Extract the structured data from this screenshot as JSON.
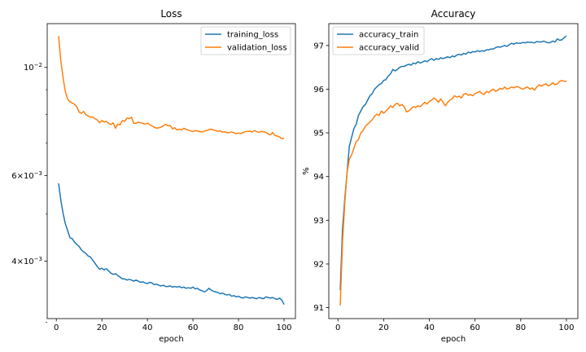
{
  "colors": {
    "train": "#1f77b4",
    "valid": "#ff7f0e"
  },
  "chart_data": [
    {
      "type": "line",
      "title": "Loss",
      "xlabel": "epoch",
      "ylabel": "",
      "yscale": "log",
      "xlim": [
        -4,
        105
      ],
      "ylim": [
        0.00305,
        0.0123
      ],
      "x_ticks": [
        0,
        20,
        40,
        60,
        80,
        100
      ],
      "x_tick_labels": [
        "0",
        "20",
        "40",
        "60",
        "80",
        "100"
      ],
      "y_ticks_major": [
        0.01,
        0.006,
        0.004
      ],
      "y_tick_labels": [
        "10^-2",
        "6×10^-3",
        "4×10^-3"
      ],
      "y_ticks_minor": [
        0.003,
        0.005,
        0.007,
        0.008,
        0.009
      ],
      "legend_position": "top-right",
      "series": [
        {
          "name": "training_loss",
          "color_key": "train",
          "x": [
            1,
            2,
            3,
            4,
            5,
            6,
            7,
            8,
            9,
            10,
            11,
            12,
            13,
            14,
            15,
            16,
            17,
            18,
            19,
            20,
            21,
            22,
            23,
            24,
            25,
            26,
            27,
            28,
            29,
            30,
            31,
            32,
            33,
            34,
            35,
            36,
            37,
            38,
            39,
            40,
            41,
            42,
            43,
            44,
            45,
            46,
            47,
            48,
            49,
            50,
            51,
            52,
            53,
            54,
            55,
            56,
            57,
            58,
            59,
            60,
            61,
            62,
            63,
            64,
            65,
            66,
            67,
            68,
            69,
            70,
            71,
            72,
            73,
            74,
            75,
            76,
            77,
            78,
            79,
            80,
            81,
            82,
            83,
            84,
            85,
            86,
            87,
            88,
            89,
            90,
            91,
            92,
            93,
            94,
            95,
            96,
            97,
            98,
            99,
            100
          ],
          "y": [
            0.00578,
            0.00533,
            0.00501,
            0.00477,
            0.00462,
            0.00447,
            0.00445,
            0.00438,
            0.00433,
            0.00429,
            0.00422,
            0.00418,
            0.00415,
            0.0041,
            0.00408,
            0.00402,
            0.00396,
            0.0039,
            0.00385,
            0.00387,
            0.00384,
            0.00386,
            0.00382,
            0.00378,
            0.00376,
            0.00377,
            0.00374,
            0.00371,
            0.00368,
            0.00368,
            0.00366,
            0.00367,
            0.00366,
            0.00364,
            0.00366,
            0.00364,
            0.00362,
            0.00363,
            0.00361,
            0.0036,
            0.00362,
            0.00361,
            0.00358,
            0.00359,
            0.00357,
            0.00356,
            0.00357,
            0.00355,
            0.00355,
            0.00356,
            0.00354,
            0.00355,
            0.00354,
            0.00355,
            0.00353,
            0.00354,
            0.00352,
            0.00353,
            0.00352,
            0.00354,
            0.00351,
            0.00352,
            0.00349,
            0.00348,
            0.00346,
            0.00348,
            0.00352,
            0.00349,
            0.00347,
            0.00346,
            0.00345,
            0.00343,
            0.00344,
            0.00342,
            0.00341,
            0.00342,
            0.00339,
            0.0034,
            0.00338,
            0.00339,
            0.00337,
            0.00336,
            0.00338,
            0.00337,
            0.00336,
            0.00337,
            0.00336,
            0.00335,
            0.00337,
            0.00336,
            0.00335,
            0.00338,
            0.00337,
            0.00336,
            0.00337,
            0.00335,
            0.00334,
            0.00336,
            0.00333,
            0.00326
          ]
        },
        {
          "name": "validation_loss",
          "color_key": "valid",
          "x": [
            1,
            2,
            3,
            4,
            5,
            6,
            7,
            8,
            9,
            10,
            11,
            12,
            13,
            14,
            15,
            16,
            17,
            18,
            19,
            20,
            21,
            22,
            23,
            24,
            25,
            26,
            27,
            28,
            29,
            30,
            31,
            32,
            33,
            34,
            35,
            36,
            37,
            38,
            39,
            40,
            41,
            42,
            43,
            44,
            45,
            46,
            47,
            48,
            49,
            50,
            51,
            52,
            53,
            54,
            55,
            56,
            57,
            58,
            59,
            60,
            61,
            62,
            63,
            64,
            65,
            66,
            67,
            68,
            69,
            70,
            71,
            72,
            73,
            74,
            75,
            76,
            77,
            78,
            79,
            80,
            81,
            82,
            83,
            84,
            85,
            86,
            87,
            88,
            89,
            90,
            91,
            92,
            93,
            94,
            95,
            96,
            97,
            98,
            99,
            100
          ],
          "y": [
            0.0116,
            0.0103,
            0.0095,
            0.0089,
            0.0086,
            0.0085,
            0.00845,
            0.0084,
            0.0083,
            0.0081,
            0.00805,
            0.00812,
            0.008,
            0.00795,
            0.0079,
            0.00791,
            0.00785,
            0.0078,
            0.0077,
            0.00778,
            0.00772,
            0.00775,
            0.00768,
            0.00763,
            0.0077,
            0.0075,
            0.00765,
            0.00762,
            0.00778,
            0.00775,
            0.00787,
            0.00785,
            0.0079,
            0.00768,
            0.00768,
            0.00772,
            0.0077,
            0.00768,
            0.00765,
            0.00768,
            0.00763,
            0.00758,
            0.00754,
            0.0075,
            0.00752,
            0.00754,
            0.00759,
            0.00764,
            0.00759,
            0.0076,
            0.00748,
            0.00752,
            0.00744,
            0.00747,
            0.00744,
            0.0075,
            0.00746,
            0.00743,
            0.00741,
            0.00738,
            0.00742,
            0.0074,
            0.00738,
            0.00737,
            0.0074,
            0.00742,
            0.00745,
            0.00747,
            0.00744,
            0.00742,
            0.00739,
            0.00741,
            0.00736,
            0.00738,
            0.00734,
            0.00735,
            0.00737,
            0.00734,
            0.00731,
            0.00733,
            0.00731,
            0.00735,
            0.00738,
            0.00739,
            0.0074,
            0.00737,
            0.00742,
            0.00738,
            0.00736,
            0.00739,
            0.00738,
            0.00735,
            0.0073,
            0.00727,
            0.00735,
            0.00725,
            0.00723,
            0.0072,
            0.00714,
            0.00716
          ]
        }
      ]
    },
    {
      "type": "line",
      "title": "Accuracy",
      "xlabel": "epoch",
      "ylabel": "%",
      "yscale": "linear",
      "xlim": [
        -4,
        105
      ],
      "ylim": [
        90.75,
        97.5
      ],
      "x_ticks": [
        0,
        20,
        40,
        60,
        80,
        100
      ],
      "x_tick_labels": [
        "0",
        "20",
        "40",
        "60",
        "80",
        "100"
      ],
      "y_ticks_major": [
        91,
        92,
        93,
        94,
        95,
        96,
        97
      ],
      "y_tick_labels": [
        "91",
        "92",
        "93",
        "94",
        "95",
        "96",
        "97"
      ],
      "legend_position": "top-left",
      "series": [
        {
          "name": "accuracy_train",
          "color_key": "train",
          "x": [
            1,
            2,
            3,
            4,
            5,
            6,
            7,
            8,
            9,
            10,
            11,
            12,
            13,
            14,
            15,
            16,
            17,
            18,
            19,
            20,
            21,
            22,
            23,
            24,
            25,
            26,
            27,
            28,
            29,
            30,
            31,
            32,
            33,
            34,
            35,
            36,
            37,
            38,
            39,
            40,
            41,
            42,
            43,
            44,
            45,
            46,
            47,
            48,
            49,
            50,
            51,
            52,
            53,
            54,
            55,
            56,
            57,
            58,
            59,
            60,
            61,
            62,
            63,
            64,
            65,
            66,
            67,
            68,
            69,
            70,
            71,
            72,
            73,
            74,
            75,
            76,
            77,
            78,
            79,
            80,
            81,
            82,
            83,
            84,
            85,
            86,
            87,
            88,
            89,
            90,
            91,
            92,
            93,
            94,
            95,
            96,
            97,
            98,
            99,
            100
          ],
          "y": [
            91.4,
            92.8,
            93.5,
            94.1,
            94.7,
            94.9,
            95.1,
            95.2,
            95.4,
            95.5,
            95.6,
            95.65,
            95.75,
            95.85,
            95.9,
            96.0,
            96.05,
            96.1,
            96.13,
            96.2,
            96.22,
            96.3,
            96.35,
            96.45,
            96.42,
            96.45,
            96.5,
            96.52,
            96.52,
            96.55,
            96.57,
            96.55,
            96.6,
            96.58,
            96.63,
            96.6,
            96.62,
            96.65,
            96.63,
            96.67,
            96.7,
            96.66,
            96.7,
            96.68,
            96.72,
            96.7,
            96.72,
            96.74,
            96.72,
            96.76,
            96.74,
            96.78,
            96.8,
            96.78,
            96.82,
            96.8,
            96.85,
            96.83,
            96.86,
            96.85,
            96.88,
            96.86,
            96.88,
            96.87,
            96.9,
            96.9,
            96.92,
            96.92,
            96.95,
            96.97,
            96.96,
            96.98,
            97.0,
            96.98,
            97.02,
            97.05,
            97.03,
            97.06,
            97.05,
            97.05,
            97.07,
            97.06,
            97.08,
            97.07,
            97.07,
            97.06,
            97.09,
            97.08,
            97.08,
            97.1,
            97.08,
            97.06,
            97.07,
            97.1,
            97.08,
            97.15,
            97.12,
            97.13,
            97.18,
            97.22
          ]
        },
        {
          "name": "accuracy_valid",
          "color_key": "valid",
          "x": [
            1,
            2,
            3,
            4,
            5,
            6,
            7,
            8,
            9,
            10,
            11,
            12,
            13,
            14,
            15,
            16,
            17,
            18,
            19,
            20,
            21,
            22,
            23,
            24,
            25,
            26,
            27,
            28,
            29,
            30,
            31,
            32,
            33,
            34,
            35,
            36,
            37,
            38,
            39,
            40,
            41,
            42,
            43,
            44,
            45,
            46,
            47,
            48,
            49,
            50,
            51,
            52,
            53,
            54,
            55,
            56,
            57,
            58,
            59,
            60,
            61,
            62,
            63,
            64,
            65,
            66,
            67,
            68,
            69,
            70,
            71,
            72,
            73,
            74,
            75,
            76,
            77,
            78,
            79,
            80,
            81,
            82,
            83,
            84,
            85,
            86,
            87,
            88,
            89,
            90,
            91,
            92,
            93,
            94,
            95,
            96,
            97,
            98,
            99,
            100
          ],
          "y": [
            91.05,
            92.5,
            93.4,
            94.1,
            94.4,
            94.5,
            94.65,
            94.8,
            94.85,
            95.0,
            95.05,
            95.15,
            95.2,
            95.25,
            95.3,
            95.38,
            95.43,
            95.4,
            95.5,
            95.45,
            95.5,
            95.55,
            95.62,
            95.58,
            95.65,
            95.68,
            95.62,
            95.65,
            95.6,
            95.48,
            95.5,
            95.55,
            95.6,
            95.58,
            95.62,
            95.6,
            95.65,
            95.7,
            95.66,
            95.72,
            95.75,
            95.8,
            95.76,
            95.7,
            95.78,
            95.7,
            95.62,
            95.7,
            95.75,
            95.78,
            95.85,
            95.82,
            95.84,
            95.8,
            95.88,
            95.9,
            95.86,
            95.88,
            95.85,
            95.9,
            95.92,
            95.95,
            95.9,
            95.88,
            95.95,
            95.92,
            95.97,
            96.0,
            95.95,
            95.98,
            96.02,
            96.0,
            96.05,
            96.0,
            96.02,
            96.05,
            96.03,
            96.06,
            96.05,
            96.02,
            96.0,
            96.03,
            96.05,
            96.0,
            96.03,
            95.98,
            96.05,
            96.1,
            96.07,
            96.1,
            96.12,
            96.08,
            96.1,
            96.15,
            96.1,
            96.12,
            96.18,
            96.2,
            96.18,
            96.18
          ]
        }
      ]
    }
  ]
}
